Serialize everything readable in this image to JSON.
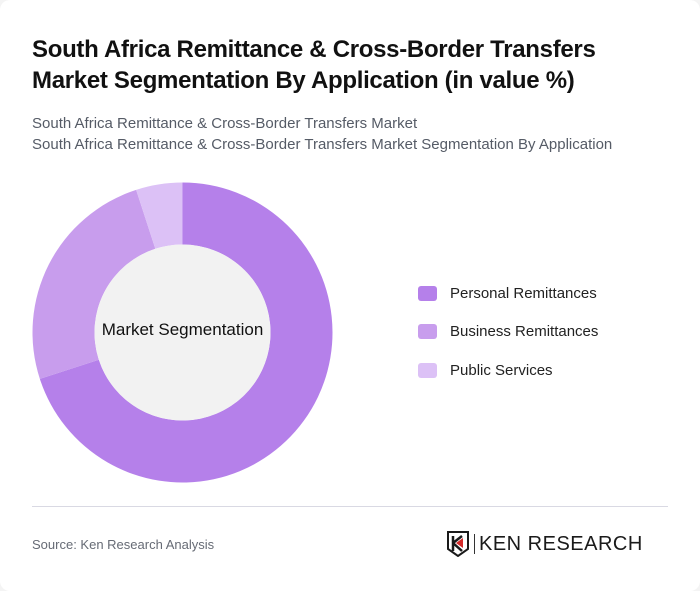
{
  "header": {
    "title": "South Africa Remittance & Cross-Border Transfers Market Segmentation By Application (in value %)",
    "subtitle_line1": "South Africa Remittance & Cross-Border Transfers Market",
    "subtitle_line2": "South Africa Remittance & Cross-Border Transfers Market Segmentation By Application"
  },
  "chart": {
    "center_label": "Market Segmentation"
  },
  "legend": {
    "items": [
      {
        "label": "Personal Remittances",
        "color": "#b580ea"
      },
      {
        "label": "Business Remittances",
        "color": "#c89ded"
      },
      {
        "label": "Public Services",
        "color": "#dcc1f6"
      }
    ]
  },
  "footer": {
    "source": "Source: Ken Research Analysis",
    "logo_text": "KEN RESEARCH"
  },
  "chart_data": {
    "type": "pie",
    "variant": "donut",
    "title": "South Africa Remittance & Cross-Border Transfers Market Segmentation By Application (in value %)",
    "subtitle": "South Africa Remittance & Cross-Border Transfers Market Segmentation By Application",
    "center_label": "Market Segmentation",
    "categories": [
      "Personal Remittances",
      "Business Remittances",
      "Public Services"
    ],
    "values": [
      70,
      25,
      5
    ],
    "unit": "%",
    "colors": [
      "#b580ea",
      "#c89ded",
      "#dcc1f6"
    ],
    "legend_position": "right",
    "start_angle": "12 o'clock, clockwise"
  }
}
